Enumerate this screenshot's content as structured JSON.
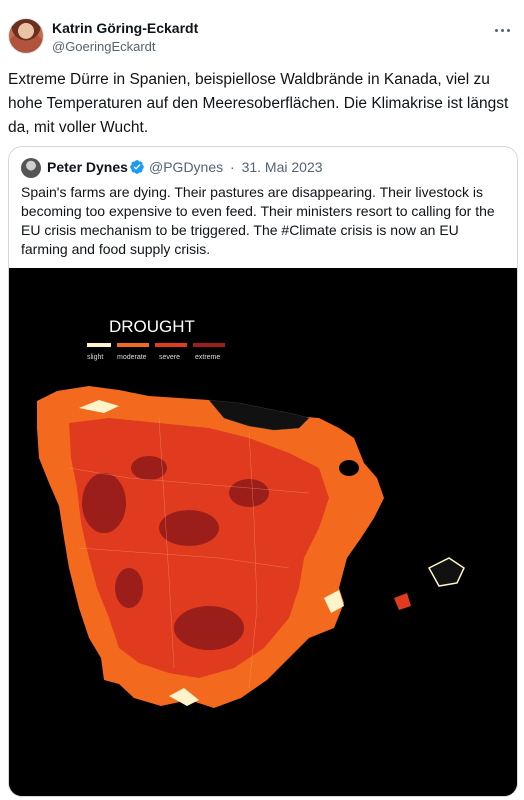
{
  "author": {
    "name": "Katrin Göring-Eckardt",
    "handle": "@GoeringEckardt"
  },
  "tweet_text": "Extreme Dürre in Spanien, beispiellose Waldbrände in Kanada, viel zu hohe Temperaturen auf den Meeresoberflächen. Die Klimakrise ist längst da, mit voller Wucht.",
  "quote": {
    "name": "Peter Dynes",
    "handle": "@PGDynes",
    "separator": "·",
    "date": "31. Mai 2023",
    "text": "Spain's farms are dying. Their pastures are disappearing. Their livestock is becoming too expensive to even feed. Their ministers resort to calling for the EU crisis mechanism to be triggered. The #Climate crisis is now an EU farming and food supply crisis.",
    "media": {
      "title": "DROUGHT",
      "legend": [
        {
          "label": "slight",
          "color": "#fff4c9"
        },
        {
          "label": "moderate",
          "color": "#f36a1f"
        },
        {
          "label": "severe",
          "color": "#e03b1e"
        },
        {
          "label": "extreme",
          "color": "#9c1e1a"
        }
      ]
    }
  },
  "colors": {
    "text_primary": "#0f1419",
    "text_secondary": "#536471",
    "border": "#cfd9de",
    "verified_badge": "#1d9bf0"
  },
  "icons": {
    "more": "more-horizontal-icon",
    "verified": "verified-badge-icon"
  }
}
